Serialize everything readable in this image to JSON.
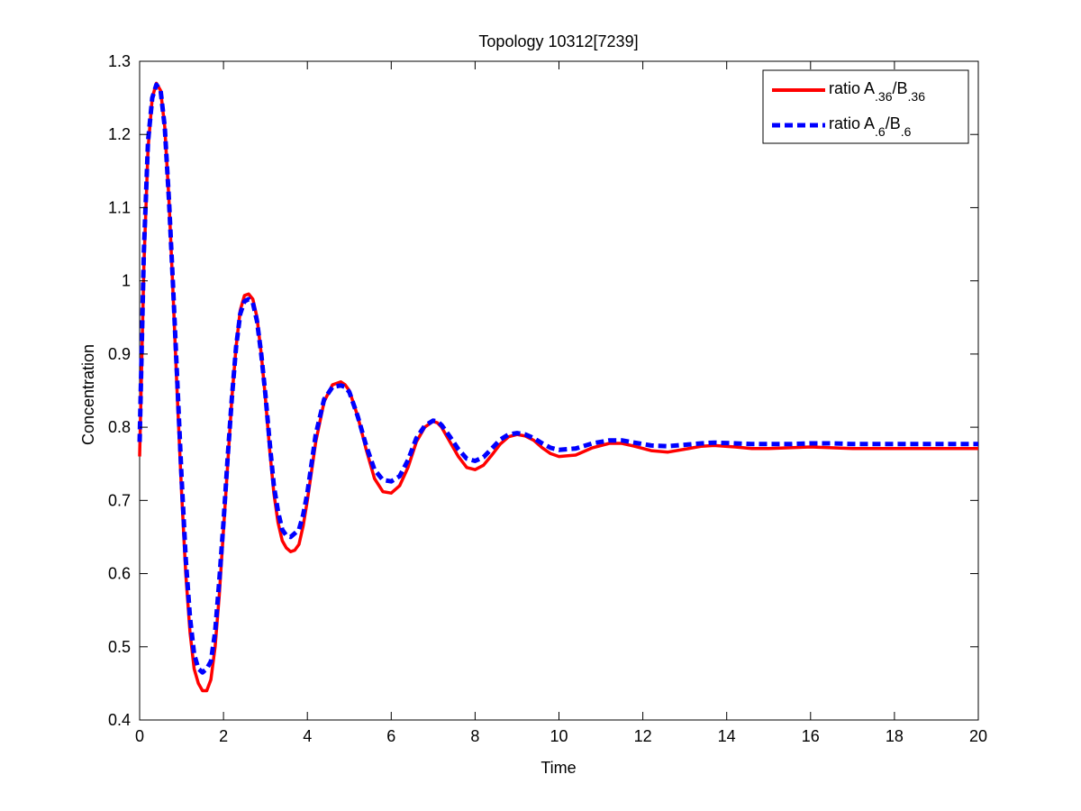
{
  "chart_data": {
    "type": "line",
    "title": "Topology 10312[7239]",
    "xlabel": "Time",
    "ylabel": "Concentration",
    "xlim": [
      0,
      20
    ],
    "ylim": [
      0.4,
      1.3
    ],
    "xticks": [
      "0",
      "2",
      "4",
      "6",
      "8",
      "10",
      "12",
      "14",
      "16",
      "18",
      "20"
    ],
    "yticks": [
      "0.4",
      "0.5",
      "0.6",
      "0.7",
      "0.8",
      "0.9",
      "1",
      "1.1",
      "1.2",
      "1.3"
    ],
    "grid": false,
    "legend_position": "top-right",
    "series": [
      {
        "name": "ratio A.36/B.36",
        "legend_parts": {
          "prefix": "ratio A",
          "sub1": ".36",
          "mid": "/B",
          "sub2": ".36"
        },
        "color": "#ff0000",
        "style": "solid",
        "x": [
          0,
          0.1,
          0.2,
          0.3,
          0.4,
          0.5,
          0.6,
          0.7,
          0.8,
          0.9,
          1.0,
          1.1,
          1.2,
          1.3,
          1.4,
          1.5,
          1.6,
          1.7,
          1.8,
          1.9,
          2.0,
          2.1,
          2.2,
          2.3,
          2.4,
          2.5,
          2.6,
          2.7,
          2.8,
          2.9,
          3.0,
          3.1,
          3.2,
          3.3,
          3.4,
          3.5,
          3.6,
          3.7,
          3.8,
          3.9,
          4.0,
          4.2,
          4.4,
          4.6,
          4.8,
          4.9,
          5.0,
          5.2,
          5.4,
          5.6,
          5.8,
          6.0,
          6.2,
          6.4,
          6.6,
          6.8,
          7.0,
          7.1,
          7.2,
          7.4,
          7.6,
          7.8,
          8.0,
          8.2,
          8.4,
          8.6,
          8.8,
          9.0,
          9.2,
          9.4,
          9.6,
          9.8,
          10.0,
          10.4,
          10.8,
          11.2,
          11.5,
          11.8,
          12.2,
          12.6,
          13.0,
          13.4,
          13.7,
          14.2,
          14.6,
          15.0,
          15.5,
          16.0,
          16.5,
          17.0,
          18.0,
          19.0,
          20.0
        ],
        "y": [
          0.76,
          1.02,
          1.18,
          1.25,
          1.27,
          1.26,
          1.21,
          1.11,
          0.98,
          0.84,
          0.71,
          0.6,
          0.52,
          0.47,
          0.45,
          0.44,
          0.44,
          0.455,
          0.5,
          0.57,
          0.66,
          0.75,
          0.84,
          0.91,
          0.96,
          0.98,
          0.982,
          0.975,
          0.95,
          0.9,
          0.84,
          0.77,
          0.71,
          0.67,
          0.645,
          0.635,
          0.63,
          0.632,
          0.64,
          0.665,
          0.7,
          0.78,
          0.835,
          0.858,
          0.862,
          0.858,
          0.85,
          0.815,
          0.77,
          0.73,
          0.712,
          0.71,
          0.72,
          0.745,
          0.78,
          0.8,
          0.808,
          0.806,
          0.8,
          0.78,
          0.76,
          0.745,
          0.742,
          0.748,
          0.762,
          0.777,
          0.787,
          0.79,
          0.788,
          0.782,
          0.772,
          0.764,
          0.76,
          0.762,
          0.772,
          0.778,
          0.778,
          0.774,
          0.768,
          0.766,
          0.77,
          0.774,
          0.775,
          0.773,
          0.771,
          0.771,
          0.772,
          0.773,
          0.772,
          0.771,
          0.771,
          0.771,
          0.771
        ]
      },
      {
        "name": "ratio A.6/B.6",
        "legend_parts": {
          "prefix": "ratio A",
          "sub1": ".6",
          "mid": "/B",
          "sub2": ".6"
        },
        "color": "#0000ff",
        "style": "dashed",
        "x": [
          0,
          0.1,
          0.2,
          0.3,
          0.4,
          0.5,
          0.6,
          0.7,
          0.8,
          0.9,
          1.0,
          1.1,
          1.2,
          1.3,
          1.4,
          1.5,
          1.6,
          1.7,
          1.8,
          1.9,
          2.0,
          2.1,
          2.2,
          2.3,
          2.4,
          2.5,
          2.6,
          2.7,
          2.8,
          2.9,
          3.0,
          3.1,
          3.2,
          3.3,
          3.4,
          3.5,
          3.6,
          3.7,
          3.8,
          3.9,
          4.0,
          4.2,
          4.4,
          4.6,
          4.8,
          4.9,
          5.0,
          5.2,
          5.4,
          5.6,
          5.8,
          6.0,
          6.2,
          6.4,
          6.6,
          6.8,
          7.0,
          7.1,
          7.2,
          7.4,
          7.6,
          7.8,
          8.0,
          8.2,
          8.4,
          8.6,
          8.8,
          9.0,
          9.2,
          9.4,
          9.6,
          9.8,
          10.0,
          10.4,
          10.8,
          11.2,
          11.5,
          11.8,
          12.2,
          12.6,
          13.0,
          13.4,
          13.7,
          14.2,
          14.6,
          15.0,
          15.5,
          16.0,
          16.5,
          17.0,
          18.0,
          19.0,
          20.0
        ],
        "y": [
          0.78,
          1.04,
          1.19,
          1.25,
          1.268,
          1.26,
          1.21,
          1.11,
          0.99,
          0.86,
          0.73,
          0.62,
          0.54,
          0.49,
          0.47,
          0.465,
          0.47,
          0.48,
          0.52,
          0.59,
          0.67,
          0.76,
          0.84,
          0.91,
          0.955,
          0.972,
          0.975,
          0.97,
          0.945,
          0.9,
          0.845,
          0.78,
          0.72,
          0.685,
          0.66,
          0.652,
          0.65,
          0.655,
          0.66,
          0.68,
          0.71,
          0.79,
          0.838,
          0.855,
          0.857,
          0.855,
          0.848,
          0.815,
          0.775,
          0.742,
          0.728,
          0.726,
          0.733,
          0.755,
          0.785,
          0.802,
          0.809,
          0.808,
          0.803,
          0.787,
          0.77,
          0.757,
          0.754,
          0.759,
          0.771,
          0.783,
          0.79,
          0.792,
          0.79,
          0.785,
          0.778,
          0.772,
          0.769,
          0.771,
          0.778,
          0.782,
          0.782,
          0.779,
          0.775,
          0.774,
          0.776,
          0.778,
          0.779,
          0.778,
          0.777,
          0.777,
          0.777,
          0.778,
          0.778,
          0.777,
          0.777,
          0.777,
          0.777
        ]
      }
    ]
  }
}
